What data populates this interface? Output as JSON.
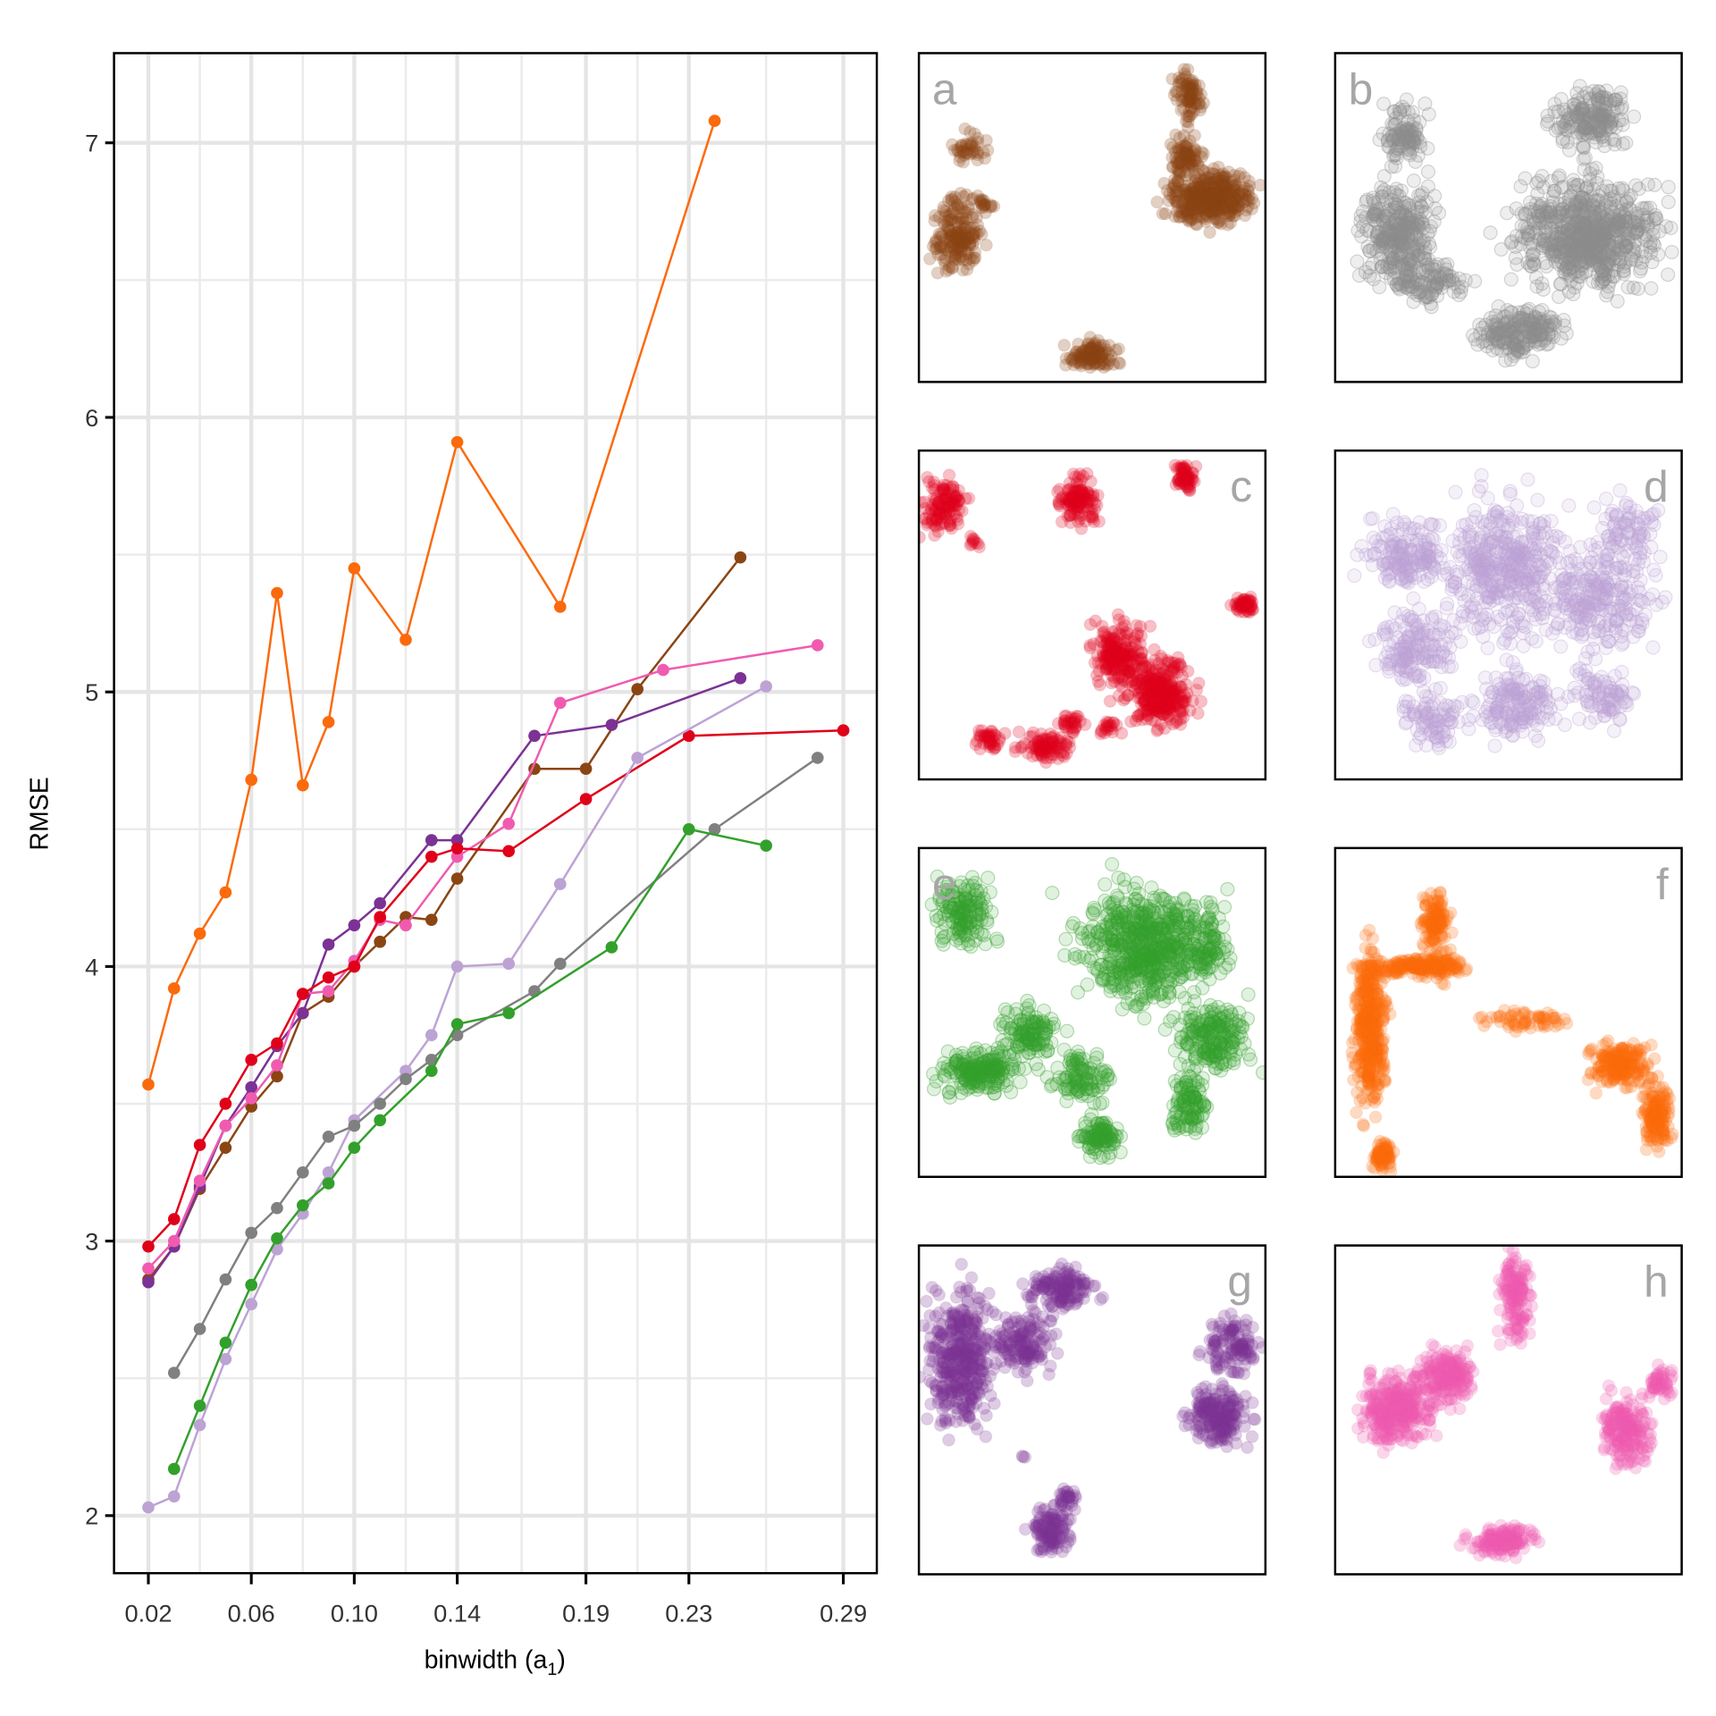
{
  "chart_data": [
    {
      "type": "line",
      "xlabel": "binwidth (a",
      "xlabel_sub": "1",
      "xlabel_close": ")",
      "ylabel": "RMSE",
      "xlim": [
        0.006,
        0.3
      ],
      "ylim": [
        1.8,
        7.33
      ],
      "xticks": [
        "0.02",
        "0.06",
        "0.10",
        "0.14",
        "0.19",
        "0.23",
        "0.29"
      ],
      "xtick_values": [
        0.02,
        0.06,
        0.1,
        0.14,
        0.19,
        0.23,
        0.29
      ],
      "xminor": [
        0.04,
        0.08,
        0.12,
        0.165,
        0.21,
        0.26
      ],
      "yticks": [
        "2",
        "3",
        "4",
        "5",
        "6",
        "7"
      ],
      "ytick_values": [
        2,
        3,
        4,
        5,
        6,
        7
      ],
      "grid": true,
      "series": [
        {
          "name": "f",
          "color": "#fb6a0c",
          "x": [
            0.02,
            0.03,
            0.04,
            0.05,
            0.06,
            0.07,
            0.08,
            0.09,
            0.1,
            0.12,
            0.14,
            0.18,
            0.24
          ],
          "y": [
            3.57,
            3.92,
            4.12,
            4.27,
            4.68,
            5.36,
            4.66,
            4.89,
            5.45,
            5.19,
            5.91,
            5.31,
            7.08
          ]
        },
        {
          "name": "a",
          "color": "#8b4513",
          "x": [
            0.02,
            0.03,
            0.04,
            0.05,
            0.06,
            0.07,
            0.08,
            0.09,
            0.1,
            0.11,
            0.12,
            0.13,
            0.14,
            0.17,
            0.19,
            0.21,
            0.25
          ],
          "y": [
            2.86,
            2.98,
            3.19,
            3.34,
            3.49,
            3.6,
            3.83,
            3.89,
            4.0,
            4.09,
            4.18,
            4.17,
            4.32,
            4.72,
            4.72,
            5.01,
            5.49
          ]
        },
        {
          "name": "g",
          "color": "#7b3294",
          "x": [
            0.02,
            0.03,
            0.04,
            0.05,
            0.06,
            0.07,
            0.08,
            0.09,
            0.1,
            0.11,
            0.13,
            0.14,
            0.17,
            0.2,
            0.25
          ],
          "y": [
            2.85,
            2.98,
            3.2,
            3.42,
            3.56,
            3.71,
            3.83,
            4.08,
            4.15,
            4.23,
            4.46,
            4.46,
            4.84,
            4.88,
            5.05
          ]
        },
        {
          "name": "h",
          "color": "#f05bb0",
          "x": [
            0.02,
            0.03,
            0.04,
            0.05,
            0.06,
            0.07,
            0.08,
            0.09,
            0.1,
            0.11,
            0.12,
            0.14,
            0.16,
            0.18,
            0.22,
            0.28
          ],
          "y": [
            2.9,
            3.0,
            3.22,
            3.42,
            3.52,
            3.64,
            3.9,
            3.91,
            4.02,
            4.17,
            4.15,
            4.4,
            4.52,
            4.96,
            5.08,
            5.17
          ]
        },
        {
          "name": "c",
          "color": "#e0001a",
          "x": [
            0.02,
            0.03,
            0.04,
            0.05,
            0.06,
            0.07,
            0.08,
            0.09,
            0.1,
            0.11,
            0.13,
            0.14,
            0.16,
            0.19,
            0.23,
            0.29
          ],
          "y": [
            2.98,
            3.08,
            3.35,
            3.5,
            3.66,
            3.72,
            3.9,
            3.96,
            4.0,
            4.18,
            4.4,
            4.43,
            4.42,
            4.61,
            4.84,
            4.86
          ]
        },
        {
          "name": "d",
          "color": "#bca3d4",
          "x": [
            0.02,
            0.03,
            0.04,
            0.05,
            0.06,
            0.07,
            0.08,
            0.09,
            0.1,
            0.12,
            0.13,
            0.14,
            0.16,
            0.18,
            0.21,
            0.26
          ],
          "y": [
            2.03,
            2.07,
            2.33,
            2.57,
            2.77,
            2.97,
            3.1,
            3.25,
            3.44,
            3.62,
            3.75,
            4.0,
            4.01,
            4.3,
            4.76,
            5.02
          ]
        },
        {
          "name": "b",
          "color": "#808080",
          "x": [
            0.03,
            0.04,
            0.05,
            0.06,
            0.07,
            0.08,
            0.09,
            0.1,
            0.11,
            0.12,
            0.13,
            0.14,
            0.17,
            0.18,
            0.24,
            0.28
          ],
          "y": [
            2.52,
            2.68,
            2.86,
            3.03,
            3.12,
            3.25,
            3.38,
            3.42,
            3.5,
            3.59,
            3.66,
            3.75,
            3.91,
            4.01,
            4.5,
            4.76
          ]
        },
        {
          "name": "e",
          "color": "#33a02c",
          "x": [
            0.03,
            0.04,
            0.05,
            0.06,
            0.07,
            0.08,
            0.09,
            0.1,
            0.11,
            0.13,
            0.14,
            0.16,
            0.2,
            0.23,
            0.26
          ],
          "y": [
            2.17,
            2.4,
            2.63,
            2.84,
            3.01,
            3.13,
            3.21,
            3.34,
            3.44,
            3.62,
            3.79,
            3.83,
            4.07,
            4.5,
            4.44
          ]
        }
      ]
    },
    {
      "type": "scatter",
      "panels": [
        {
          "label": "a",
          "color": "#8b4513"
        },
        {
          "label": "b",
          "color": "#8c8c8c"
        },
        {
          "label": "c",
          "color": "#e0001a"
        },
        {
          "label": "d",
          "color": "#bca3d4"
        },
        {
          "label": "e",
          "color": "#33a02c"
        },
        {
          "label": "f",
          "color": "#fb6a0c"
        },
        {
          "label": "g",
          "color": "#7b3294"
        },
        {
          "label": "h",
          "color": "#f05bb0"
        }
      ]
    }
  ]
}
